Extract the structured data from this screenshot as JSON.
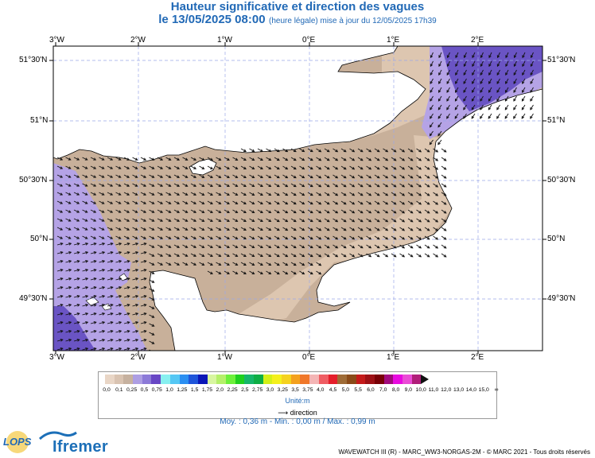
{
  "header": {
    "title": "Hauteur significative et direction des vagues",
    "date_main": "le 13/05/2025 08:00",
    "date_note": "(heure légale) mise à jour du 12/05/2025 17h39"
  },
  "map": {
    "lon_labels": [
      "3°W",
      "2°W",
      "1°W",
      "0°E",
      "1°E",
      "2°E"
    ],
    "lat_labels": [
      "51°30'N",
      "51°N",
      "50°30'N",
      "50°N",
      "49°30'N"
    ],
    "colors": {
      "land": "#ffffff",
      "c_0_1": "#ddc6b0",
      "c_0_25": "#c8b09a",
      "c_0_5": "#b5a3e6",
      "c_0_75": "#8e7dd6",
      "c_1_0": "#6a54c4",
      "grid": "#9aa8e8",
      "arrow": "#111111"
    }
  },
  "legend": {
    "colors": [
      "#e9d6c6",
      "#d9c3b1",
      "#c6b19f",
      "#ad9ee3",
      "#8c7ad8",
      "#6847c5",
      "#87f0f0",
      "#55c7f4",
      "#2b8ff2",
      "#1f55da",
      "#0b17b7",
      "#d8f6a0",
      "#b5f06a",
      "#6cf03a",
      "#1ed01e",
      "#16b66a",
      "#0eae45",
      "#d4f018",
      "#f4f01c",
      "#f5d21e",
      "#f4a11d",
      "#f0782a",
      "#f4b5b5",
      "#ef5d63",
      "#e51e2a",
      "#9e6b36",
      "#8a4a18",
      "#c41a1a",
      "#9d1015",
      "#780006",
      "#a10a7d",
      "#e80ae0",
      "#ea4bd6",
      "#b01e7a"
    ],
    "ticks": [
      "0,0",
      "0,1",
      "0,25",
      "0,5",
      "0,75",
      "1,0",
      "1,25",
      "1,5",
      "1,75",
      "2,0",
      "2,25",
      "2,5",
      "2,75",
      "3,0",
      "3,25",
      "3,5",
      "3,75",
      "4,0",
      "4,5",
      "5,0",
      "5,5",
      "6,0",
      "7,0",
      "8,0",
      "9,0",
      "10,0",
      "11,0",
      "12,0",
      "13,0",
      "14,0",
      "15,0",
      "∞"
    ],
    "unit": "Unité:m",
    "direction_label": "direction",
    "stats": "Moy. : 0,36 m   -   Min. : 0,00 m / Max. : 0,99 m"
  },
  "footer": {
    "credits": "WAVEWATCH III (R) - MARC_WW3-NORGAS-2M - © MARC 2021 - Tous droits réservés",
    "logo_lops": "LOPS",
    "logo_ifremer": "Ifremer"
  }
}
